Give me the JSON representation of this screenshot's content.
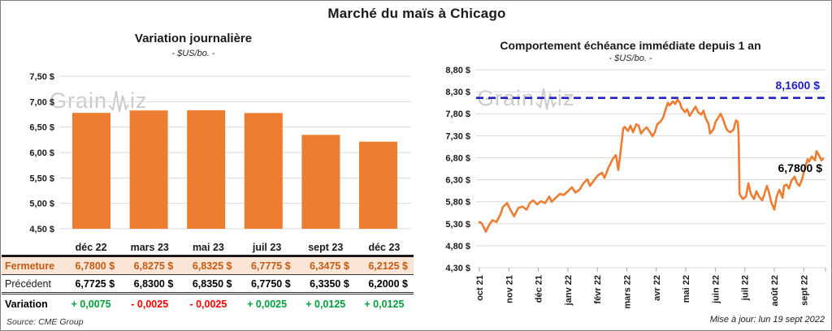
{
  "page": {
    "title": "Marché du maïs à Chicago",
    "watermark_prefix": "Grain",
    "watermark_suffix": "iz",
    "source": "Source: CME Group",
    "updated": "Mise à jour: lun 19 sept 2022"
  },
  "colors": {
    "orange": "#ED7D31",
    "dark_orange": "#C55A11",
    "peach": "#FBE5D6",
    "green": "#00A03C",
    "red": "#FF0000",
    "blue": "#2121C8",
    "grid": "#D9D9D9",
    "axis": "#A6A6A6",
    "tick_text": "#1a1a1a"
  },
  "left_chart": {
    "title": "Variation journalière",
    "subtitle": "- $US/bo. -"
  },
  "right_chart": {
    "title": "Comportement échéance immédiate depuis 1 an",
    "subtitle": "- $US/bo. -",
    "ref_label": "8,1600 $",
    "last_label": "6,7800 $"
  },
  "table": {
    "headers": [
      "déc 22",
      "mars 23",
      "mai 23",
      "juil 23",
      "sept 23",
      "déc 23"
    ],
    "rows": [
      {
        "label": "Fermeture",
        "values": [
          "6,7800 $",
          "6,8275 $",
          "6,8325 $",
          "6,7775 $",
          "6,3475 $",
          "6,2125 $"
        ]
      },
      {
        "label": "Précédent",
        "values": [
          "6,7725 $",
          "6,8300 $",
          "6,8350 $",
          "6,7750 $",
          "6,3350 $",
          "6,2000 $"
        ]
      },
      {
        "label": "Variation",
        "values": [
          "+ 0,0075",
          "- 0,0025",
          "- 0,0025",
          "+ 0,0025",
          "+ 0,0125",
          "+ 0,0125"
        ]
      }
    ]
  },
  "chart_data": [
    {
      "type": "bar",
      "title": "Variation journalière",
      "subtitle": "- $US/bo. -",
      "categories": [
        "déc 22",
        "mars 23",
        "mai 23",
        "juil 23",
        "sept 23",
        "déc 23"
      ],
      "values": [
        6.78,
        6.8275,
        6.8325,
        6.7775,
        6.3475,
        6.2125
      ],
      "ylim": [
        4.5,
        7.5
      ],
      "yticks": [
        7.5,
        7.0,
        6.5,
        6.0,
        5.5,
        5.0,
        4.5
      ],
      "ytick_labels": [
        "7,50 $",
        "7,00 $",
        "6,50 $",
        "6,00 $",
        "5,50 $",
        "5,00 $",
        "4,50 $"
      ],
      "grid": true,
      "bar_color": "#ED7D31"
    },
    {
      "type": "line",
      "title": "Comportement échéance immédiate depuis 1 an",
      "subtitle": "- $US/bo. -",
      "x_labels": [
        "oct 21",
        "nov 21",
        "déc 21",
        "janv 22",
        "févr 22",
        "mars 22",
        "avr 22",
        "mai 22",
        "juin 22",
        "juil 22",
        "août 22",
        "sept 22"
      ],
      "ylim": [
        4.3,
        8.8
      ],
      "yticks": [
        8.8,
        8.3,
        7.8,
        7.3,
        6.8,
        6.3,
        5.8,
        5.3,
        4.8,
        4.3
      ],
      "ytick_labels": [
        "8,80 $",
        "8,30 $",
        "7,80 $",
        "7,30 $",
        "6,80 $",
        "6,30 $",
        "5,80 $",
        "5,30 $",
        "4,80 $",
        "4,30 $"
      ],
      "grid": true,
      "line_color": "#ED7D31",
      "ref_line": {
        "value": 8.16,
        "label": "8,1600 $",
        "style": "dashed",
        "color": "#2121C8"
      },
      "last_point": {
        "value": 6.78,
        "label": "6,7800 $"
      },
      "points_x_unit": "months from oct 21",
      "points": [
        [
          0,
          5.34
        ],
        [
          0.08,
          5.31
        ],
        [
          0.22,
          5.12
        ],
        [
          0.33,
          5.27
        ],
        [
          0.44,
          5.38
        ],
        [
          0.58,
          5.34
        ],
        [
          0.72,
          5.52
        ],
        [
          0.8,
          5.68
        ],
        [
          0.94,
          5.77
        ],
        [
          1.05,
          5.62
        ],
        [
          1.18,
          5.47
        ],
        [
          1.32,
          5.66
        ],
        [
          1.46,
          5.69
        ],
        [
          1.6,
          5.62
        ],
        [
          1.71,
          5.77
        ],
        [
          1.82,
          5.83
        ],
        [
          1.96,
          5.74
        ],
        [
          2.09,
          5.81
        ],
        [
          2.23,
          5.77
        ],
        [
          2.37,
          5.92
        ],
        [
          2.45,
          5.8
        ],
        [
          2.59,
          5.89
        ],
        [
          2.73,
          5.98
        ],
        [
          2.86,
          5.95
        ],
        [
          3,
          6.04
        ],
        [
          3.14,
          6.13
        ],
        [
          3.25,
          6.01
        ],
        [
          3.39,
          6.07
        ],
        [
          3.53,
          6.22
        ],
        [
          3.66,
          6.31
        ],
        [
          3.75,
          6.16
        ],
        [
          3.88,
          6.28
        ],
        [
          4.02,
          6.4
        ],
        [
          4.16,
          6.46
        ],
        [
          4.24,
          6.34
        ],
        [
          4.38,
          6.58
        ],
        [
          4.52,
          6.77
        ],
        [
          4.63,
          6.86
        ],
        [
          4.71,
          6.52
        ],
        [
          4.79,
          6.95
        ],
        [
          4.88,
          7.47
        ],
        [
          4.93,
          7.5
        ],
        [
          5.04,
          7.41
        ],
        [
          5.12,
          7.53
        ],
        [
          5.21,
          7.38
        ],
        [
          5.32,
          7.56
        ],
        [
          5.4,
          7.53
        ],
        [
          5.48,
          7.35
        ],
        [
          5.59,
          7.44
        ],
        [
          5.67,
          7.49
        ],
        [
          5.76,
          7.41
        ],
        [
          5.87,
          7.29
        ],
        [
          5.95,
          7.38
        ],
        [
          6.03,
          7.56
        ],
        [
          6.14,
          7.62
        ],
        [
          6.23,
          7.71
        ],
        [
          6.31,
          7.89
        ],
        [
          6.39,
          8.05
        ],
        [
          6.45,
          7.99
        ],
        [
          6.56,
          8.08
        ],
        [
          6.64,
          8.02
        ],
        [
          6.72,
          8.12
        ],
        [
          6.8,
          8.05
        ],
        [
          6.86,
          7.93
        ],
        [
          6.97,
          7.84
        ],
        [
          7.05,
          7.9
        ],
        [
          7.13,
          7.75
        ],
        [
          7.24,
          7.87
        ],
        [
          7.33,
          7.96
        ],
        [
          7.41,
          7.84
        ],
        [
          7.52,
          7.78
        ],
        [
          7.6,
          7.87
        ],
        [
          7.66,
          7.72
        ],
        [
          7.77,
          7.56
        ],
        [
          7.82,
          7.35
        ],
        [
          7.93,
          7.44
        ],
        [
          8.01,
          7.62
        ],
        [
          8.1,
          7.71
        ],
        [
          8.18,
          7.8
        ],
        [
          8.26,
          7.68
        ],
        [
          8.37,
          7.47
        ],
        [
          8.43,
          7.41
        ],
        [
          8.51,
          7.38
        ],
        [
          8.62,
          7.44
        ],
        [
          8.7,
          7.65
        ],
        [
          8.76,
          7.62
        ],
        [
          8.79,
          7.3
        ],
        [
          8.82,
          5.98
        ],
        [
          8.93,
          5.86
        ],
        [
          9.04,
          5.92
        ],
        [
          9.12,
          6.22
        ],
        [
          9.2,
          5.98
        ],
        [
          9.31,
          5.86
        ],
        [
          9.39,
          6.04
        ],
        [
          9.48,
          5.92
        ],
        [
          9.59,
          5.83
        ],
        [
          9.67,
          5.98
        ],
        [
          9.75,
          6.16
        ],
        [
          9.81,
          6.04
        ],
        [
          9.89,
          5.8
        ],
        [
          10,
          5.62
        ],
        [
          10.08,
          5.92
        ],
        [
          10.17,
          6.07
        ],
        [
          10.28,
          5.89
        ],
        [
          10.33,
          6.16
        ],
        [
          10.41,
          6.19
        ],
        [
          10.5,
          6.1
        ],
        [
          10.58,
          6.28
        ],
        [
          10.69,
          6.37
        ],
        [
          10.77,
          6.22
        ],
        [
          10.85,
          6.16
        ],
        [
          10.94,
          6.31
        ],
        [
          11.02,
          6.52
        ],
        [
          11.13,
          6.77
        ],
        [
          11.18,
          6.71
        ],
        [
          11.27,
          6.83
        ],
        [
          11.38,
          6.74
        ],
        [
          11.43,
          6.95
        ],
        [
          11.51,
          6.86
        ],
        [
          11.6,
          6.74
        ],
        [
          11.65,
          6.78
        ]
      ]
    }
  ]
}
